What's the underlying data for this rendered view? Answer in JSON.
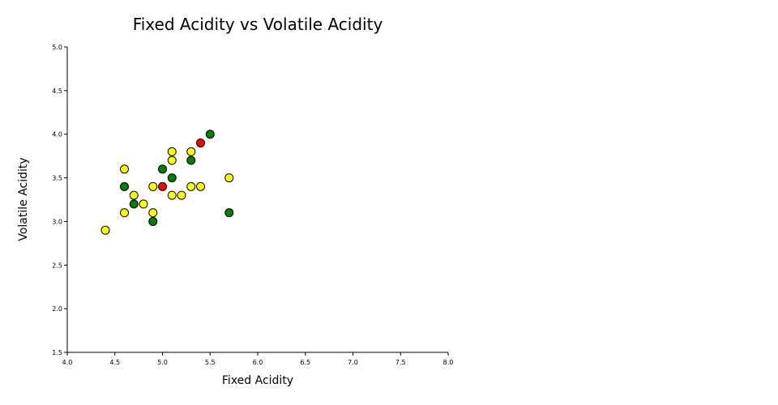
{
  "chart_data": {
    "type": "scatter",
    "title": "Fixed Acidity vs Volatile Acidity",
    "xlabel": "Fixed Acidity",
    "ylabel": "Volatile Acidity",
    "xlim": [
      4.0,
      8.0
    ],
    "ylim": [
      1.5,
      5.0
    ],
    "x_ticks": [
      "4.0",
      "4.5",
      "5.0",
      "5.5",
      "6.0",
      "6.5",
      "7.0",
      "7.5",
      "8.0"
    ],
    "y_ticks": [
      "1.5",
      "2.0",
      "2.5",
      "3.0",
      "3.5",
      "4.0",
      "4.5",
      "5.0"
    ],
    "grid": false,
    "colors": {
      "green": "#008000",
      "yellow": "#ffff00",
      "red": "#ff0000"
    },
    "points": [
      {
        "x": 4.4,
        "y": 2.9,
        "color": "yellow"
      },
      {
        "x": 4.6,
        "y": 3.6,
        "color": "yellow"
      },
      {
        "x": 4.6,
        "y": 3.4,
        "color": "green"
      },
      {
        "x": 4.6,
        "y": 3.1,
        "color": "yellow"
      },
      {
        "x": 4.7,
        "y": 3.3,
        "color": "yellow"
      },
      {
        "x": 4.7,
        "y": 3.2,
        "color": "green"
      },
      {
        "x": 4.8,
        "y": 3.2,
        "color": "yellow"
      },
      {
        "x": 4.9,
        "y": 3.4,
        "color": "yellow"
      },
      {
        "x": 4.9,
        "y": 3.1,
        "color": "yellow"
      },
      {
        "x": 4.9,
        "y": 3.0,
        "color": "green"
      },
      {
        "x": 5.0,
        "y": 3.6,
        "color": "green"
      },
      {
        "x": 5.0,
        "y": 3.4,
        "color": "red"
      },
      {
        "x": 5.1,
        "y": 3.8,
        "color": "yellow"
      },
      {
        "x": 5.1,
        "y": 3.7,
        "color": "yellow"
      },
      {
        "x": 5.1,
        "y": 3.5,
        "color": "green"
      },
      {
        "x": 5.1,
        "y": 3.3,
        "color": "yellow"
      },
      {
        "x": 5.2,
        "y": 3.3,
        "color": "yellow"
      },
      {
        "x": 5.3,
        "y": 3.8,
        "color": "yellow"
      },
      {
        "x": 5.3,
        "y": 3.7,
        "color": "green"
      },
      {
        "x": 5.3,
        "y": 3.4,
        "color": "yellow"
      },
      {
        "x": 5.4,
        "y": 3.9,
        "color": "red"
      },
      {
        "x": 5.4,
        "y": 3.4,
        "color": "yellow"
      },
      {
        "x": 5.5,
        "y": 4.0,
        "color": "green"
      },
      {
        "x": 5.7,
        "y": 3.5,
        "color": "yellow"
      },
      {
        "x": 5.7,
        "y": 3.1,
        "color": "green"
      }
    ]
  }
}
